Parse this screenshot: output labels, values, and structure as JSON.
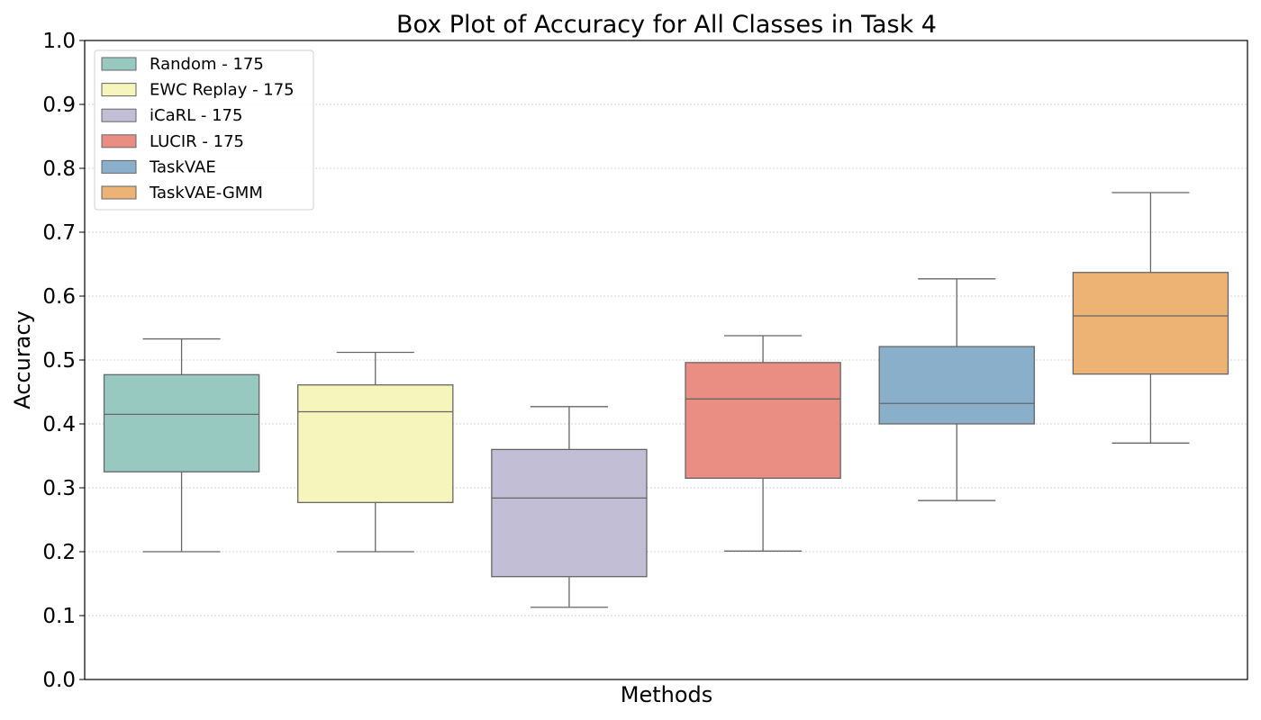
{
  "chart_data": {
    "type": "box",
    "title": "Box Plot of Accuracy for All Classes in Task 4",
    "xlabel": "Methods",
    "ylabel": "Accuracy",
    "ylim": [
      0,
      1
    ],
    "yticks": [
      "0.0",
      "0.1",
      "0.2",
      "0.3",
      "0.4",
      "0.5",
      "0.6",
      "0.7",
      "0.8",
      "0.9",
      "1.0"
    ],
    "grid": "horizontal dotted",
    "legend_position": "top-left",
    "series": [
      {
        "name": "Random - 175",
        "color": "#98c9c1",
        "whisker_low": 0.2,
        "q1": 0.325,
        "median": 0.415,
        "q3": 0.477,
        "whisker_high": 0.533
      },
      {
        "name": "EWC Replay - 175",
        "color": "#f6f5bb",
        "whisker_low": 0.2,
        "q1": 0.277,
        "median": 0.419,
        "q3": 0.461,
        "whisker_high": 0.512
      },
      {
        "name": "iCaRL - 175",
        "color": "#c1bed6",
        "whisker_low": 0.113,
        "q1": 0.161,
        "median": 0.284,
        "q3": 0.36,
        "whisker_high": 0.427
      },
      {
        "name": "LUCIR - 175",
        "color": "#ea8d83",
        "whisker_low": 0.201,
        "q1": 0.315,
        "median": 0.439,
        "q3": 0.496,
        "whisker_high": 0.538
      },
      {
        "name": "TaskVAE",
        "color": "#8aafca",
        "whisker_low": 0.28,
        "q1": 0.4,
        "median": 0.432,
        "q3": 0.521,
        "whisker_high": 0.627
      },
      {
        "name": "TaskVAE-GMM",
        "color": "#ecb374",
        "whisker_low": 0.37,
        "q1": 0.478,
        "median": 0.569,
        "q3": 0.637,
        "whisker_high": 0.762
      }
    ]
  }
}
